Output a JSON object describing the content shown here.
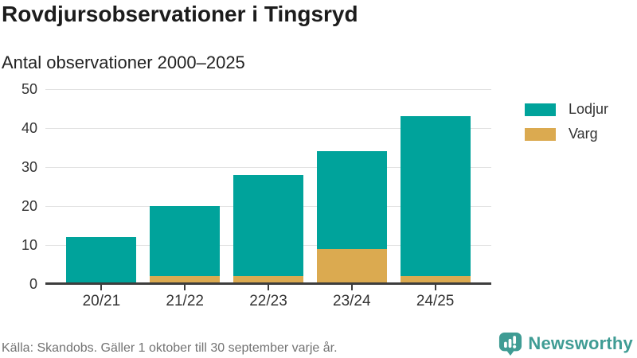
{
  "header": {
    "title": "Rovdjursobservationer i Tingsryd",
    "subtitle": "Antal observationer 2000–2025"
  },
  "chart_data": {
    "type": "bar",
    "stacked": true,
    "title": "Rovdjursobservationer i Tingsryd",
    "subtitle": "Antal observationer 2000–2025",
    "categories": [
      "20/21",
      "21/22",
      "22/23",
      "23/24",
      "24/25"
    ],
    "series": [
      {
        "name": "Lodjur",
        "color": "#00a39b",
        "values": [
          12,
          18,
          26,
          25,
          41
        ]
      },
      {
        "name": "Varg",
        "color": "#dbaa50",
        "values": [
          0,
          2,
          2,
          9,
          2
        ]
      }
    ],
    "totals": [
      12,
      20,
      28,
      34,
      43
    ],
    "stack_bottom_series": "Varg",
    "xlabel": "",
    "ylabel": "",
    "ylim": [
      0,
      50
    ],
    "ytick_step": 10,
    "grid": true,
    "legend_position": "right"
  },
  "footer": {
    "source": "Källa: Skandobs. Gäller 1 oktober till 30 september varje år."
  },
  "branding": {
    "name": "Newsworthy",
    "logo_icon": "bar-chart-speech-bubble-icon",
    "color": "#3f9c94"
  },
  "colors": {
    "lodjur_teal": "#00a39b",
    "varg_gold": "#dbaa50",
    "axis": "#3d3d3d",
    "grid": "#e2e2e2",
    "text": "#333333",
    "muted": "#737373"
  }
}
